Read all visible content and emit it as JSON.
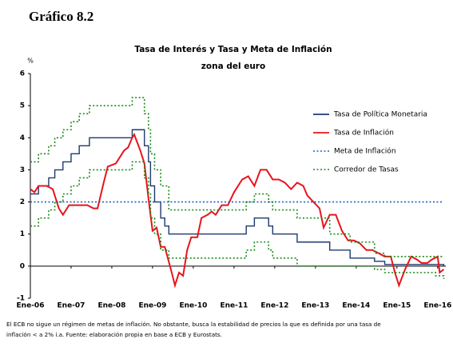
{
  "header": "Gráfico 8.2",
  "chart_data": {
    "type": "line",
    "title": "Tasa de Interés y Tasa y Meta de Inflación",
    "subtitle": "zona del euro",
    "y_unit": "%",
    "xlim": [
      2006,
      2016.2
    ],
    "xticks": [
      {
        "value": 2006,
        "label": "Ene-06"
      },
      {
        "value": 2007,
        "label": "Ene-07"
      },
      {
        "value": 2008,
        "label": "Ene-08"
      },
      {
        "value": 2009,
        "label": "Ene-09"
      },
      {
        "value": 2010,
        "label": "Ene-10"
      },
      {
        "value": 2011,
        "label": "Ene-11"
      },
      {
        "value": 2012,
        "label": "Ene-12"
      },
      {
        "value": 2013,
        "label": "Ene-13"
      },
      {
        "value": 2014,
        "label": "Ene-14"
      },
      {
        "value": 2015,
        "label": "Ene-15"
      },
      {
        "value": 2016,
        "label": "Ene-16"
      }
    ],
    "ylim": [
      -1,
      6
    ],
    "yticks": [
      -1,
      0,
      1,
      2,
      3,
      4,
      5,
      6
    ],
    "grid": false,
    "legend": "right",
    "series": [
      {
        "name": "Tasa de Política Monetaria",
        "color": "#1f3a6e",
        "dash": "solid",
        "step": true,
        "lines": [
          {
            "x": [
              2006.0,
              2006.2,
              2006.45,
              2006.6,
              2006.8,
              2007.0,
              2007.2,
              2007.45,
              2008.5,
              2008.8,
              2008.9,
              2008.95,
              2009.05,
              2009.2,
              2009.3,
              2009.4,
              2011.3,
              2011.5,
              2011.85,
              2011.95,
              2012.55,
              2013.35,
              2013.85,
              2014.45,
              2014.7,
              2016.15
            ],
            "values": [
              2.25,
              2.5,
              2.75,
              3.0,
              3.25,
              3.5,
              3.75,
              4.0,
              4.25,
              3.75,
              3.25,
              2.5,
              2.0,
              1.5,
              1.25,
              1.0,
              1.25,
              1.5,
              1.25,
              1.0,
              0.75,
              0.5,
              0.25,
              0.15,
              0.05,
              0.0
            ]
          }
        ]
      },
      {
        "name": "Tasa de Inflación",
        "color": "#e8141c",
        "dash": "solid",
        "step": false,
        "lines": [
          {
            "x": [
              2006.0,
              2006.1,
              2006.2,
              2006.4,
              2006.55,
              2006.7,
              2006.8,
              2006.95,
              2007.2,
              2007.4,
              2007.55,
              2007.65,
              2007.8,
              2007.9,
              2008.1,
              2008.3,
              2008.4,
              2008.5,
              2008.55,
              2008.7,
              2008.8,
              2008.9,
              2009.0,
              2009.1,
              2009.2,
              2009.3,
              2009.45,
              2009.55,
              2009.65,
              2009.75,
              2009.85,
              2009.95,
              2010.1,
              2010.2,
              2010.35,
              2010.45,
              2010.55,
              2010.7,
              2010.85,
              2011.0,
              2011.2,
              2011.35,
              2011.5,
              2011.65,
              2011.8,
              2011.95,
              2012.1,
              2012.25,
              2012.4,
              2012.55,
              2012.7,
              2012.8,
              2012.95,
              2013.1,
              2013.2,
              2013.35,
              2013.5,
              2013.65,
              2013.8,
              2013.95,
              2014.1,
              2014.25,
              2014.4,
              2014.55,
              2014.7,
              2014.85,
              2014.95,
              2015.05,
              2015.2,
              2015.35,
              2015.5,
              2015.6,
              2015.75,
              2015.85,
              2016.0,
              2016.05,
              2016.15
            ],
            "values": [
              2.4,
              2.3,
              2.5,
              2.5,
              2.4,
              1.8,
              1.6,
              1.9,
              1.9,
              1.9,
              1.8,
              1.8,
              2.6,
              3.1,
              3.2,
              3.6,
              3.7,
              4.0,
              4.1,
              3.6,
              3.2,
              2.1,
              1.1,
              1.2,
              0.6,
              0.6,
              -0.1,
              -0.6,
              -0.2,
              -0.3,
              0.5,
              0.9,
              0.9,
              1.5,
              1.6,
              1.7,
              1.6,
              1.9,
              1.9,
              2.3,
              2.7,
              2.8,
              2.5,
              3.0,
              3.0,
              2.7,
              2.7,
              2.6,
              2.4,
              2.6,
              2.5,
              2.2,
              2.0,
              1.8,
              1.2,
              1.6,
              1.6,
              1.1,
              0.8,
              0.8,
              0.7,
              0.5,
              0.5,
              0.4,
              0.3,
              0.3,
              -0.2,
              -0.6,
              -0.1,
              0.3,
              0.2,
              0.1,
              0.1,
              0.2,
              0.3,
              -0.2,
              -0.1
            ]
          }
        ]
      },
      {
        "name": "Meta de Inflación",
        "color": "#1f5fbf",
        "dash": "dotted",
        "step": false,
        "lines": [
          {
            "x": [
              2006.0,
              2016.15
            ],
            "values": [
              2,
              2
            ]
          }
        ]
      },
      {
        "name": "Corredor de Tasas",
        "color": "#1a8a1a",
        "dash": "dotted",
        "step": true,
        "lines": [
          {
            "x": [
              2006.0,
              2006.2,
              2006.45,
              2006.6,
              2006.8,
              2007.0,
              2007.2,
              2007.45,
              2008.5,
              2008.8,
              2008.9,
              2008.95,
              2009.05,
              2009.2,
              2009.4,
              2011.3,
              2011.5,
              2011.85,
              2011.95,
              2012.55,
              2013.35,
              2013.85,
              2014.45,
              2014.7,
              2016.15
            ],
            "values": [
              3.25,
              3.5,
              3.75,
              4.0,
              4.25,
              4.5,
              4.75,
              5.0,
              5.25,
              4.75,
              4.25,
              3.5,
              3.0,
              2.5,
              1.75,
              2.0,
              2.25,
              2.0,
              1.75,
              1.5,
              1.0,
              0.75,
              0.4,
              0.3,
              0.3
            ]
          },
          {
            "x": [
              2006.0,
              2006.2,
              2006.45,
              2006.6,
              2006.8,
              2007.0,
              2007.2,
              2007.45,
              2008.5,
              2008.8,
              2008.9,
              2008.95,
              2009.05,
              2009.2,
              2009.4,
              2011.3,
              2011.5,
              2011.85,
              2011.95,
              2012.55,
              2014.45,
              2014.7,
              2015.95,
              2016.15
            ],
            "values": [
              1.25,
              1.5,
              1.75,
              2.0,
              2.25,
              2.5,
              2.75,
              3.0,
              3.25,
              2.75,
              2.25,
              1.5,
              1.0,
              0.5,
              0.25,
              0.5,
              0.75,
              0.5,
              0.25,
              0.0,
              -0.1,
              -0.2,
              -0.3,
              -0.4
            ]
          }
        ]
      }
    ]
  },
  "notes": [
    "El ECB no sigue un régimen de metas de inflación. No obstante, busca la estabilidad de precios la que es definida por una tasa de",
    "inflación < a 2% i.a. Fuente: elaboración propia en base a ECB y Eurostats."
  ]
}
